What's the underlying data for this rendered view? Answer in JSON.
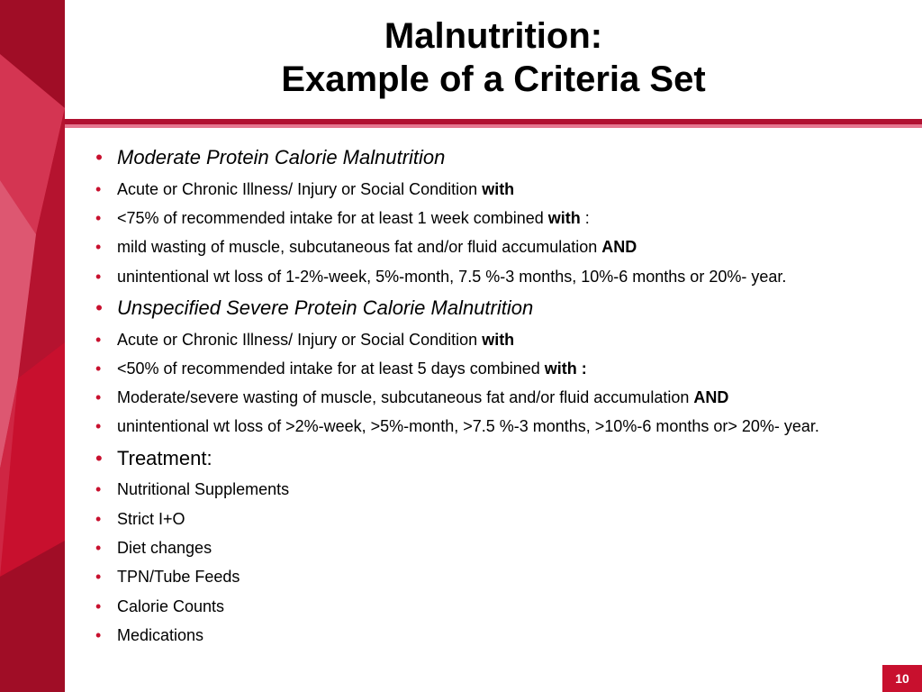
{
  "colors": {
    "accent": "#c8102e",
    "accent_dark": "#b01030",
    "accent_light": "#e5768f",
    "text": "#000000",
    "bg": "#ffffff"
  },
  "title": {
    "line1": "Malnutrition:",
    "line2": "Example of a Criteria Set"
  },
  "bullets": [
    {
      "level": 1,
      "style": "heading",
      "segments": [
        {
          "t": "Moderate Protein Calorie Malnutrition"
        }
      ]
    },
    {
      "level": 2,
      "segments": [
        {
          "t": "Acute or Chronic Illness/ Injury or Social Condition "
        },
        {
          "t": "with",
          "bold": true
        }
      ]
    },
    {
      "level": 2,
      "segments": [
        {
          "t": "<75% of recommended intake for at least 1 week combined "
        },
        {
          "t": "with",
          "bold": true
        },
        {
          "t": " :"
        }
      ]
    },
    {
      "level": 2,
      "segments": [
        {
          "t": "mild wasting of muscle, subcutaneous fat and/or fluid accumulation "
        },
        {
          "t": "AND",
          "bold": true
        }
      ]
    },
    {
      "level": 2,
      "segments": [
        {
          "t": "unintentional wt loss of 1-2%-week, 5%-month, 7.5 %-3 months, 10%-6 months or 20%- year."
        }
      ]
    },
    {
      "level": 1,
      "style": "heading",
      "segments": [
        {
          "t": "Unspecified Severe Protein Calorie Malnutrition"
        }
      ]
    },
    {
      "level": 2,
      "segments": [
        {
          "t": "Acute or Chronic Illness/ Injury or Social Condition "
        },
        {
          "t": "with",
          "bold": true
        }
      ]
    },
    {
      "level": 2,
      "segments": [
        {
          "t": "<50% of recommended intake for at least 5 days combined "
        },
        {
          "t": "with :",
          "bold": true
        }
      ]
    },
    {
      "level": 2,
      "segments": [
        {
          "t": "Moderate/severe wasting of muscle, subcutaneous fat and/or fluid accumulation "
        },
        {
          "t": "AND",
          "bold": true
        }
      ]
    },
    {
      "level": 2,
      "segments": [
        {
          "t": "unintentional wt loss of >2%-week, >5%-month, >7.5 %-3 months, >10%-6 months or> 20%- year."
        }
      ]
    },
    {
      "level": 1,
      "segments": [
        {
          "t": "Treatment:"
        }
      ]
    },
    {
      "level": 2,
      "segments": [
        {
          "t": "Nutritional Supplements"
        }
      ]
    },
    {
      "level": 2,
      "segments": [
        {
          "t": "Strict I+O"
        }
      ]
    },
    {
      "level": 2,
      "segments": [
        {
          "t": "Diet changes"
        }
      ]
    },
    {
      "level": 2,
      "segments": [
        {
          "t": "TPN/Tube Feeds"
        }
      ]
    },
    {
      "level": 2,
      "segments": [
        {
          "t": "Calorie Counts"
        }
      ]
    },
    {
      "level": 2,
      "segments": [
        {
          "t": "Medications"
        }
      ]
    }
  ],
  "page_number": "10"
}
